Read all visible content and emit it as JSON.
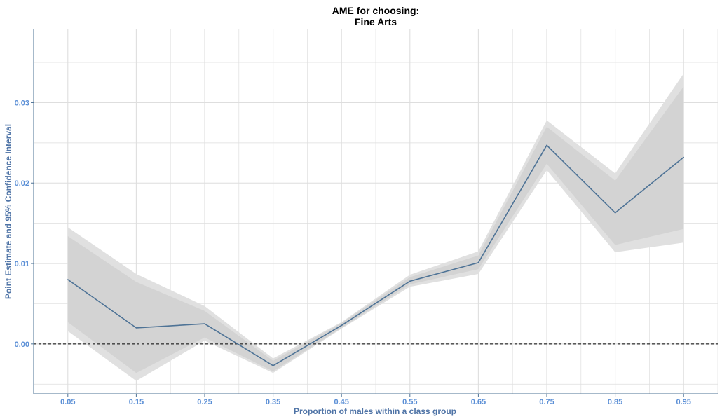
{
  "chart_data": {
    "type": "line",
    "title": [
      "AME for choosing:",
      "Fine Arts"
    ],
    "xlabel": "Proportion of males within a class group",
    "ylabel": "Point Estimate and 95% Confidence Interval",
    "x": [
      0.05,
      0.15,
      0.25,
      0.35,
      0.45,
      0.55,
      0.65,
      0.75,
      0.85,
      0.95
    ],
    "x_tick_labels": [
      "0.05",
      "0.15",
      "0.25",
      "0.35",
      "0.45",
      "0.55",
      "0.65",
      "0.75",
      "0.85",
      "0.95"
    ],
    "y_ticks": [
      0.0,
      0.01,
      0.02,
      0.03
    ],
    "y_tick_labels": [
      "0.00",
      "0.01",
      "0.02",
      "0.03"
    ],
    "xlim": [
      0.0,
      1.0
    ],
    "ylim": [
      -0.0062,
      0.0391
    ],
    "series": [
      {
        "values": [
          0.008,
          0.002,
          0.0025,
          -0.0027,
          0.0023,
          0.0078,
          0.0101,
          0.0247,
          0.0163,
          0.0232
        ],
        "inner_lower": [
          0.0027,
          -0.0036,
          0.0008,
          -0.0034,
          0.002,
          0.0074,
          0.0093,
          0.0224,
          0.0123,
          0.0143
        ],
        "inner_upper": [
          0.0134,
          0.0077,
          0.0041,
          -0.0021,
          0.0026,
          0.0083,
          0.011,
          0.027,
          0.0203,
          0.032
        ],
        "outer_lower": [
          0.0016,
          -0.0046,
          0.0004,
          -0.0036,
          0.0019,
          0.0071,
          0.0087,
          0.0216,
          0.0114,
          0.0126
        ],
        "outer_upper": [
          0.0145,
          0.0087,
          0.0047,
          -0.0018,
          0.0027,
          0.0086,
          0.0115,
          0.0278,
          0.0212,
          0.0336
        ]
      }
    ],
    "reference_line": {
      "y": 0.0,
      "style": "dashed"
    },
    "grid": true,
    "legend": "none",
    "colors": {
      "line": "#4e7396",
      "band_outer": "#e0e0e0",
      "band_inner": "#d3d3d3",
      "grid": "#dedede",
      "axis": "#4e7396",
      "tick_label": "#5b8fd6",
      "axis_title": "#4e73a6",
      "reference": "#000000"
    }
  }
}
